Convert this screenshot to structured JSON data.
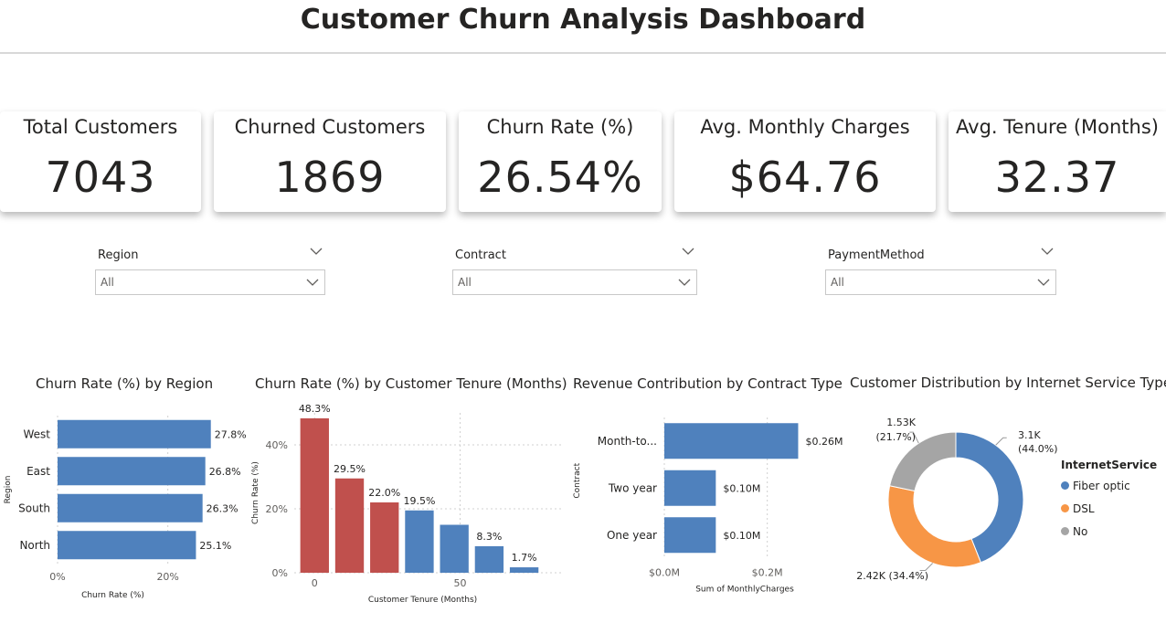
{
  "header": {
    "title": "Customer Churn Analysis Dashboard"
  },
  "kpis": [
    {
      "label": "Total Customers",
      "value": "7043"
    },
    {
      "label": "Churned Customers",
      "value": "1869"
    },
    {
      "label": "Churn Rate (%)",
      "value": "26.54%"
    },
    {
      "label": "Avg. Monthly Charges",
      "value": "$64.76"
    },
    {
      "label": "Avg. Tenure (Months)",
      "value": "32.37"
    }
  ],
  "slicers": [
    {
      "label": "Region",
      "value": "All"
    },
    {
      "label": "Contract",
      "value": "All"
    },
    {
      "label": "PaymentMethod",
      "value": "All"
    }
  ],
  "colors": {
    "blue": "#4f81bd",
    "red": "#c0504d",
    "orange": "#f79646",
    "gray": "#a5a5a5",
    "text": "#252423"
  },
  "charts": {
    "region": {
      "title": "Churn Rate (%) by Region",
      "xlabel": "Churn Rate (%)",
      "ylabel": "Region"
    },
    "tenure": {
      "title": "Churn Rate (%) by Customer Tenure (Months)",
      "xlabel": "Customer Tenure (Months)",
      "ylabel": "Churn Rate (%)"
    },
    "contract": {
      "title": "Revenue Contribution by Contract Type",
      "xlabel": "Sum of MonthlyCharges",
      "ylabel": "Contract"
    },
    "internet": {
      "title": "Customer Distribution by Internet Service Type",
      "legend_title": "InternetService"
    }
  },
  "chart_data": [
    {
      "type": "bar",
      "orientation": "horizontal",
      "title": "Churn Rate (%) by Region",
      "categories": [
        "West",
        "East",
        "South",
        "North"
      ],
      "values": [
        27.8,
        26.8,
        26.3,
        25.1
      ],
      "labels": [
        "27.8%",
        "26.8%",
        "26.3%",
        "25.1%"
      ],
      "xlabel": "Churn Rate (%)",
      "ylabel": "Region",
      "xlim": [
        0,
        30
      ],
      "xticks": [
        0,
        20
      ],
      "xtick_labels": [
        "0%",
        "20%"
      ],
      "grid": true
    },
    {
      "type": "bar",
      "title": "Churn Rate (%) by Customer Tenure (Months)",
      "x": [
        0,
        12,
        24,
        36,
        48,
        60,
        72
      ],
      "values": [
        48.3,
        29.5,
        22.0,
        19.5,
        15.0,
        8.3,
        1.7
      ],
      "labels": [
        "48.3%",
        "29.5%",
        "22.0%",
        "19.5%",
        "",
        "8.3%",
        "1.7%"
      ],
      "bar_colors": [
        "red",
        "red",
        "red",
        "blue",
        "blue",
        "blue",
        "blue"
      ],
      "xlabel": "Customer Tenure (Months)",
      "ylabel": "Churn Rate (%)",
      "ylim": [
        0,
        50
      ],
      "yticks": [
        0,
        20,
        40
      ],
      "ytick_labels": [
        "0%",
        "20%",
        "40%"
      ],
      "xticks": [
        0,
        50
      ],
      "xtick_labels": [
        "0",
        "50"
      ],
      "xlim": [
        -7,
        85
      ],
      "grid": true
    },
    {
      "type": "bar",
      "orientation": "horizontal",
      "title": "Revenue Contribution by Contract Type",
      "categories": [
        "Month-to...",
        "Two year",
        "One year"
      ],
      "values": [
        0.26,
        0.1,
        0.1
      ],
      "labels": [
        "$0.26M",
        "$0.10M",
        "$0.10M"
      ],
      "xlabel": "Sum of MonthlyCharges",
      "ylabel": "Contract",
      "xlim": [
        0,
        0.3
      ],
      "xticks": [
        0,
        0.2
      ],
      "xtick_labels": [
        "$0.0M",
        "$0.2M"
      ],
      "grid": true
    },
    {
      "type": "pie",
      "donut": true,
      "title": "Customer Distribution by Internet Service Type",
      "legend_title": "InternetService",
      "legend_position": "right",
      "slices": [
        {
          "name": "Fiber optic",
          "value": 3.1,
          "label": "3.1K",
          "pct": "(44.0%)",
          "color": "blue"
        },
        {
          "name": "DSL",
          "value": 2.42,
          "label": "2.42K (34.4%)",
          "color": "orange"
        },
        {
          "name": "No",
          "value": 1.53,
          "label": "1.53K",
          "pct": "(21.7%)",
          "color": "gray"
        }
      ]
    }
  ]
}
